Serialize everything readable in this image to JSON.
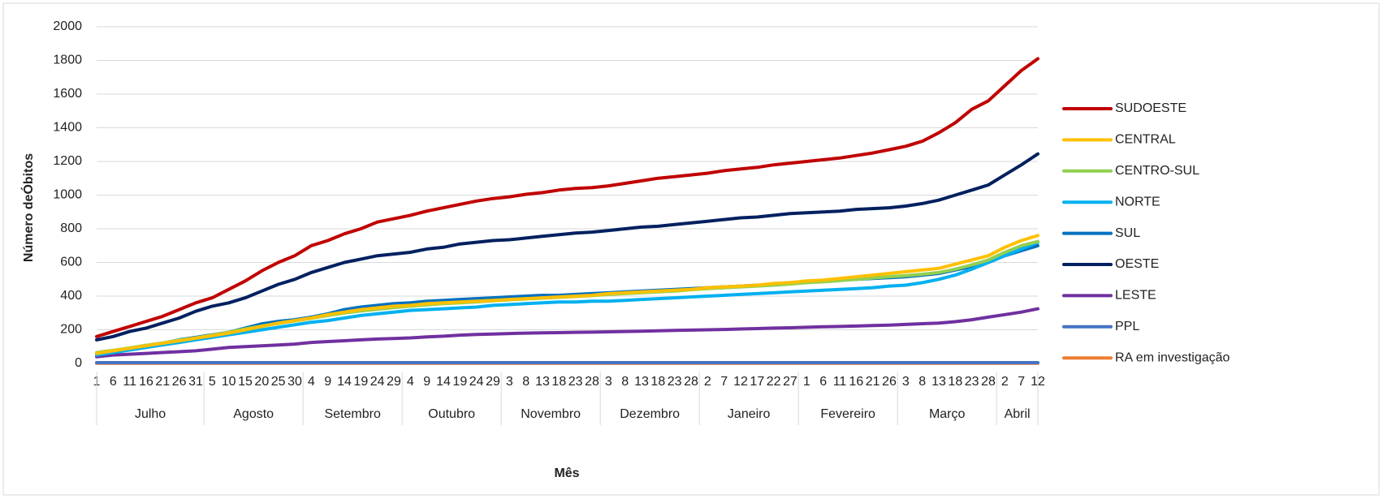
{
  "chart_data": {
    "type": "line",
    "y_label": "Número deÓbitos",
    "x_label": "Mês",
    "categories": [
      "1",
      "6",
      "11",
      "16",
      "21",
      "26",
      "31",
      "5",
      "10",
      "15",
      "20",
      "25",
      "30",
      "4",
      "9",
      "14",
      "19",
      "24",
      "29",
      "4",
      "9",
      "14",
      "19",
      "24",
      "29",
      "3",
      "8",
      "13",
      "18",
      "23",
      "28",
      "3",
      "8",
      "13",
      "18",
      "23",
      "28",
      "2",
      "7",
      "12",
      "17",
      "22",
      "27",
      "1",
      "6",
      "11",
      "16",
      "21",
      "26",
      "3",
      "8",
      "13",
      "18",
      "23",
      "28",
      "2",
      "7",
      "12"
    ],
    "months": [
      "Julho",
      "Agosto",
      "Setembro",
      "Outubro",
      "Novembro",
      "Dezembro",
      "Janeiro",
      "Fevereiro",
      "Março",
      "Abril"
    ],
    "ylim": [
      0,
      2000
    ],
    "yticks": [
      0,
      200,
      400,
      600,
      800,
      1000,
      1200,
      1400,
      1600,
      1800,
      2000
    ],
    "grid": true,
    "legend": "right",
    "series": [
      {
        "name": "SUDOESTE",
        "color": "#c00000",
        "values": [
          160,
          190,
          220,
          250,
          280,
          320,
          360,
          390,
          440,
          490,
          550,
          600,
          640,
          700,
          730,
          770,
          800,
          840,
          860,
          880,
          905,
          925,
          945,
          965,
          980,
          990,
          1005,
          1015,
          1030,
          1040,
          1045,
          1055,
          1070,
          1085,
          1100,
          1110,
          1120,
          1130,
          1145,
          1155,
          1165,
          1180,
          1190,
          1200,
          1210,
          1220,
          1235,
          1250,
          1270,
          1290,
          1320,
          1370,
          1430,
          1510,
          1560,
          1650,
          1740,
          1810
        ]
      },
      {
        "name": "CENTRAL",
        "color": "#ffc000",
        "values": [
          60,
          75,
          90,
          105,
          120,
          135,
          150,
          165,
          180,
          200,
          220,
          240,
          255,
          270,
          290,
          305,
          320,
          330,
          340,
          345,
          355,
          360,
          365,
          370,
          375,
          380,
          385,
          390,
          395,
          400,
          405,
          415,
          420,
          425,
          430,
          435,
          440,
          450,
          455,
          460,
          465,
          475,
          480,
          490,
          495,
          505,
          515,
          525,
          535,
          545,
          555,
          565,
          590,
          615,
          640,
          690,
          730,
          760
        ]
      },
      {
        "name": "CENTRO-SUL",
        "color": "#92d050",
        "values": [
          65,
          78,
          92,
          108,
          122,
          138,
          152,
          168,
          185,
          205,
          222,
          238,
          252,
          268,
          285,
          300,
          312,
          322,
          332,
          340,
          348,
          355,
          360,
          366,
          372,
          378,
          383,
          388,
          393,
          398,
          403,
          410,
          415,
          420,
          425,
          430,
          438,
          445,
          450,
          455,
          460,
          465,
          472,
          480,
          485,
          492,
          500,
          508,
          515,
          522,
          530,
          540,
          560,
          585,
          615,
          660,
          700,
          725
        ]
      },
      {
        "name": "NORTE",
        "color": "#00b0f0",
        "values": [
          50,
          65,
          80,
          95,
          110,
          125,
          140,
          155,
          170,
          185,
          200,
          215,
          230,
          245,
          255,
          270,
          285,
          295,
          305,
          315,
          320,
          325,
          330,
          335,
          345,
          350,
          355,
          360,
          365,
          365,
          370,
          370,
          375,
          380,
          385,
          390,
          395,
          400,
          405,
          410,
          415,
          420,
          425,
          430,
          435,
          440,
          445,
          450,
          460,
          465,
          480,
          500,
          525,
          560,
          600,
          640,
          680,
          720
        ]
      },
      {
        "name": "SUL",
        "color": "#0070c0",
        "values": [
          60,
          75,
          90,
          105,
          120,
          140,
          155,
          170,
          185,
          210,
          235,
          250,
          260,
          275,
          295,
          320,
          335,
          345,
          355,
          360,
          370,
          375,
          380,
          385,
          390,
          395,
          400,
          405,
          405,
          410,
          415,
          420,
          425,
          430,
          435,
          440,
          445,
          450,
          455,
          460,
          465,
          470,
          480,
          485,
          490,
          495,
          500,
          505,
          510,
          515,
          525,
          535,
          555,
          575,
          600,
          640,
          670,
          700
        ]
      },
      {
        "name": "OESTE",
        "color": "#002060",
        "values": [
          140,
          160,
          190,
          210,
          240,
          270,
          310,
          340,
          360,
          390,
          430,
          470,
          500,
          540,
          570,
          600,
          620,
          640,
          650,
          660,
          680,
          690,
          710,
          720,
          730,
          735,
          745,
          755,
          765,
          775,
          780,
          790,
          800,
          810,
          815,
          825,
          835,
          845,
          855,
          865,
          870,
          880,
          890,
          895,
          900,
          905,
          915,
          920,
          925,
          935,
          950,
          970,
          1000,
          1030,
          1060,
          1120,
          1180,
          1245
        ]
      },
      {
        "name": "LESTE",
        "color": "#7030a0",
        "values": [
          40,
          50,
          55,
          60,
          65,
          70,
          75,
          85,
          95,
          100,
          105,
          110,
          115,
          125,
          130,
          135,
          140,
          145,
          148,
          152,
          158,
          162,
          168,
          172,
          175,
          178,
          180,
          182,
          183,
          185,
          186,
          188,
          190,
          192,
          194,
          196,
          198,
          200,
          202,
          205,
          207,
          210,
          212,
          215,
          218,
          220,
          222,
          225,
          228,
          232,
          236,
          240,
          248,
          260,
          275,
          290,
          305,
          325
        ]
      },
      {
        "name": "PPL",
        "color": "#4472c4",
        "values": [
          5,
          5,
          5,
          5,
          5,
          5,
          5,
          5,
          5,
          5,
          5,
          5,
          5,
          5,
          5,
          5,
          5,
          5,
          5,
          5,
          5,
          5,
          5,
          5,
          5,
          5,
          5,
          5,
          5,
          5,
          5,
          5,
          5,
          5,
          5,
          5,
          5,
          5,
          5,
          5,
          5,
          5,
          5,
          5,
          5,
          5,
          5,
          5,
          5,
          5,
          5,
          5,
          5,
          5,
          5,
          5,
          5,
          5
        ]
      },
      {
        "name": "RA em investigação",
        "color": "#ed7d31",
        "values": [
          1,
          1,
          1,
          1,
          1,
          1,
          1,
          1,
          1,
          1,
          1,
          1,
          1,
          1,
          1,
          1,
          1,
          1,
          1,
          1,
          1,
          1,
          1,
          1,
          1,
          1,
          1,
          1,
          1,
          1,
          1,
          1,
          1,
          1,
          1,
          1,
          1,
          1,
          1,
          1,
          1,
          1,
          1,
          1,
          1,
          1,
          1,
          1,
          1,
          1,
          1,
          1,
          1,
          1,
          1,
          1,
          1,
          1
        ]
      }
    ]
  }
}
